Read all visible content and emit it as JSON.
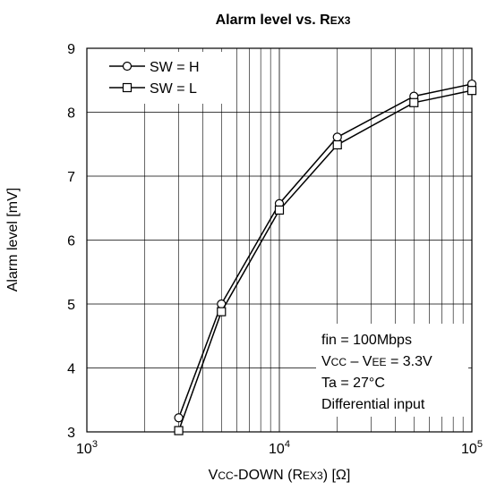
{
  "chart_data": {
    "type": "line",
    "title": {
      "main": "Alarm level vs. R",
      "sub": "EX3"
    },
    "xlabel": {
      "a": "V",
      "b": "CC",
      "c": "-DOWN (R",
      "d": "EX3",
      "e": ") [Ω]"
    },
    "ylabel": "Alarm level [mV]",
    "xscale": "log",
    "xlim": [
      1000,
      100000
    ],
    "ylim": [
      3,
      9
    ],
    "xticks": [
      {
        "value": 1000,
        "base": "10",
        "exp": "3"
      },
      {
        "value": 10000,
        "base": "10",
        "exp": "4"
      },
      {
        "value": 100000,
        "base": "10",
        "exp": "5"
      }
    ],
    "yticks": [
      "3",
      "4",
      "5",
      "6",
      "7",
      "8",
      "9"
    ],
    "grid": true,
    "legend_position": "top-left",
    "series": [
      {
        "name": "SW = H",
        "marker": "circle",
        "x": [
          3000,
          5000,
          10000,
          20000,
          50000,
          100000
        ],
        "y": [
          3.22,
          5.0,
          6.57,
          7.61,
          8.25,
          8.44
        ]
      },
      {
        "name": "SW = L",
        "marker": "square",
        "x": [
          3000,
          5000,
          10000,
          20000,
          50000,
          100000
        ],
        "y": [
          3.02,
          4.88,
          6.47,
          7.49,
          8.15,
          8.34
        ]
      }
    ],
    "annotation": {
      "line1": "fin = 100Mbps",
      "line2": {
        "a": "V",
        "b": "CC",
        "c": " – V",
        "d": "EE",
        "e": " = 3.3V"
      },
      "line3": "Ta = 27°C",
      "line4": "Differential input"
    }
  }
}
